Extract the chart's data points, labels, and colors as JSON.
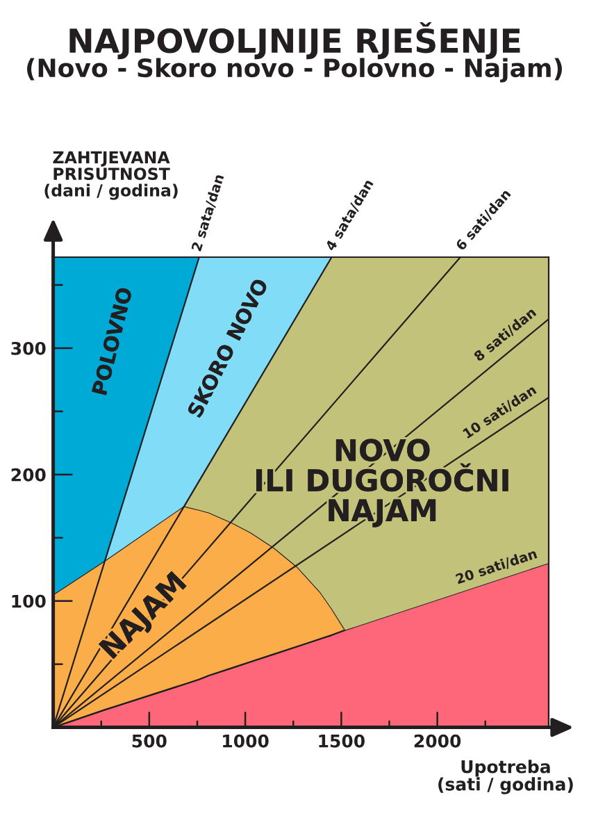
{
  "chart_data": {
    "type": "area",
    "title": "NAJPOVOLJNIJE RJEŠENJE",
    "subtitle": "(Novo - Skoro novo - Polovno - Najam)",
    "xlabel": "Upotreba\n(sati / godina)",
    "ylabel": "ZAHTJEVANA\nPRISUTNOST\n(dani / godina)",
    "stacked": true,
    "x": [
      0,
      270,
      680,
      760,
      810,
      930,
      1030,
      1150,
      1270,
      1390,
      1450,
      1520,
      2580
    ],
    "xlim": [
      0,
      2580
    ],
    "ylim": [
      0,
      372
    ],
    "xticks": [
      {
        "value": 250,
        "label": null
      },
      500,
      {
        "value": 750,
        "label": null
      },
      1000,
      {
        "value": 1250,
        "label": null
      },
      1500,
      {
        "value": 1750,
        "label": null
      },
      2000,
      {
        "value": 2250,
        "label": null
      }
    ],
    "yticks": [
      {
        "value": 50,
        "label": null
      },
      100,
      {
        "value": 150,
        "label": null
      },
      200,
      {
        "value": 250,
        "label": null
      },
      300,
      {
        "value": 350,
        "label": null
      }
    ],
    "series": [
      {
        "name": "20 sati/dan",
        "color": "#fe667a",
        "values": [
          0,
          14,
          34,
          38,
          41,
          47,
          52,
          58,
          64,
          70,
          73,
          77,
          130
        ]
      },
      {
        "name": "NAJAM",
        "color": "#fbad4a",
        "values": [
          105,
          118,
          141,
          134,
          129,
          115,
          102,
          84,
          63,
          37,
          21,
          0,
          null
        ]
      },
      {
        "name": "NOVO\nILI DUGOROČNI\nNAJAM",
        "color": "#c2c27a",
        "values": [
          null,
          null,
          0,
          23,
          38,
          77,
          110,
          153,
          199,
          250,
          278,
          295,
          242
        ]
      },
      {
        "name": "SKORO NOVO",
        "color": "#80dcf7",
        "values": [
          null,
          0,
          158,
          177,
          164,
          133,
          108,
          77,
          46,
          15,
          0,
          null,
          null
        ]
      },
      {
        "name": "POLOVNO",
        "color": "#00aad6",
        "values": [
          267,
          240,
          39,
          0,
          null,
          null,
          null,
          null,
          null,
          null,
          null,
          null,
          null
        ]
      },
      {
        "type": "line",
        "name": "2 sata/dan",
        "color": "#231f20",
        "x": [
          0,
          760
        ],
        "values": [
          0,
          372
        ]
      },
      {
        "type": "line",
        "name": "4 sata/dan",
        "color": "#231f20",
        "x": [
          0,
          1450
        ],
        "values": [
          0,
          372
        ]
      },
      {
        "type": "line",
        "name": "6 sati/dan",
        "color": "#231f20",
        "x": [
          0,
          2120
        ],
        "values": [
          0,
          372
        ]
      },
      {
        "type": "line",
        "name": "8 sati/dan",
        "color": "#231f20",
        "x": [
          0,
          2580
        ],
        "values": [
          0,
          323
        ]
      },
      {
        "type": "line",
        "name": "10 sati/dan",
        "color": "#231f20",
        "x": [
          0,
          2580
        ],
        "values": [
          0,
          261
        ]
      }
    ]
  }
}
